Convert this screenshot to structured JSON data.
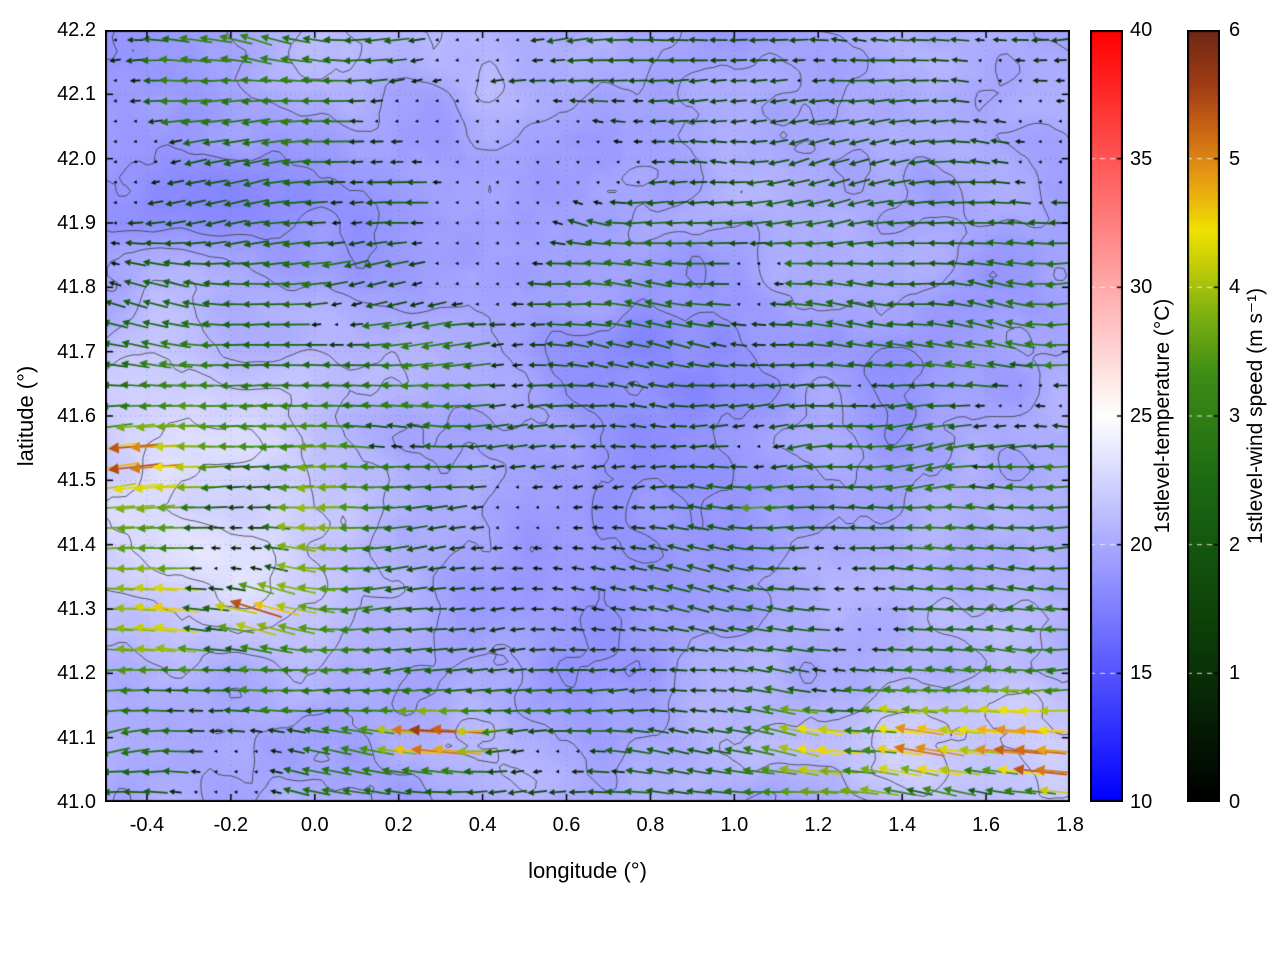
{
  "chart_data": {
    "type": "heatmap",
    "subtype": "vector-field-map",
    "title": "",
    "xlabel": "longitude (°)",
    "ylabel": "latitude (°)",
    "xlim": [
      -0.5,
      1.8
    ],
    "ylim": [
      41.0,
      42.2
    ],
    "xtick_labels": [
      "-0.4",
      "-0.2",
      "0.0",
      "0.2",
      "0.4",
      "0.6",
      "0.8",
      "1.0",
      "1.2",
      "1.4",
      "1.6",
      "1.8"
    ],
    "xtick_values": [
      -0.4,
      -0.2,
      0.0,
      0.2,
      0.4,
      0.6,
      0.8,
      1.0,
      1.2,
      1.4,
      1.6,
      1.8
    ],
    "ytick_labels": [
      "41.0",
      "41.1",
      "41.2",
      "41.3",
      "41.4",
      "41.5",
      "41.6",
      "41.7",
      "41.8",
      "41.9",
      "42.0",
      "42.1",
      "42.2"
    ],
    "ytick_values": [
      41.0,
      41.1,
      41.2,
      41.3,
      41.4,
      41.5,
      41.6,
      41.7,
      41.8,
      41.9,
      42.0,
      42.1,
      42.2
    ],
    "grid": "dotted",
    "background_field": {
      "name": "1stlevel-temperature",
      "units": "°C",
      "colormap": "blue-white-red",
      "observed_range": [
        16,
        24
      ],
      "contour_lines": true
    },
    "vector_field": {
      "name": "1stlevel-wind speed",
      "units": "m s⁻¹",
      "colormap": "black-darkgreen-green-yellow-orange-darkred",
      "observed_range": [
        0,
        5.5
      ],
      "dominant_direction": "east-to-west (arrows point toward -x)",
      "glyph": "arrows: length and color scale with speed; near-calm points drawn as small dots"
    },
    "colorbars": [
      {
        "label": "1stlevel-temperature (°C)",
        "units": "°C",
        "range": [
          10,
          40
        ],
        "tick_labels": [
          "10",
          "15",
          "20",
          "25",
          "30",
          "35",
          "40"
        ],
        "tick_values": [
          10,
          15,
          20,
          25,
          30,
          35,
          40
        ],
        "gradient_stops": [
          [
            0.0,
            "#0000ff"
          ],
          [
            0.5,
            "#ffffff"
          ],
          [
            1.0,
            "#ff0000"
          ]
        ]
      },
      {
        "label": "1stlevel-wind speed (m s⁻¹)",
        "units": "m s⁻¹",
        "range": [
          0,
          6
        ],
        "tick_labels": [
          "0",
          "1",
          "2",
          "3",
          "4",
          "5",
          "6"
        ],
        "tick_values": [
          0,
          1,
          2,
          3,
          4,
          5,
          6
        ],
        "gradient_stops": [
          [
            0.0,
            "#000000"
          ],
          [
            0.2,
            "#0b3a08"
          ],
          [
            0.4,
            "#1a6612"
          ],
          [
            0.55,
            "#3c8c16"
          ],
          [
            0.63,
            "#7db012"
          ],
          [
            0.7,
            "#c9cf06"
          ],
          [
            0.74,
            "#efe200"
          ],
          [
            0.8,
            "#eaa413"
          ],
          [
            0.87,
            "#cc6615"
          ],
          [
            0.93,
            "#a03c14"
          ],
          [
            1.0,
            "#702818"
          ]
        ]
      }
    ],
    "features": [
      {
        "region": "lon -0.5 to 0.3, lat 41.35 to 41.65",
        "wind": "3.5-5.5 m/s westward (yellow/orange arrows)",
        "temperature": "22-24 °C (pale background)"
      },
      {
        "region": "lon 1.1 to 1.8, lat 41.0 to 41.2",
        "wind": "3-4.5 m/s westward (yellow-green arrow fan)",
        "temperature": "22-24 °C (pale background)"
      },
      {
        "region": "patches lon 0.4 to 1.2, lat 41.0 to 41.6 and near top edge",
        "wind": "near calm 0-0.5 m/s (dot markers)",
        "temperature": "18-21 °C"
      },
      {
        "region": "remainder of domain",
        "wind": "1-3 m/s westward (dark green arrows)",
        "temperature": "17-22 °C (bluish background with gray contour lines)"
      }
    ]
  }
}
